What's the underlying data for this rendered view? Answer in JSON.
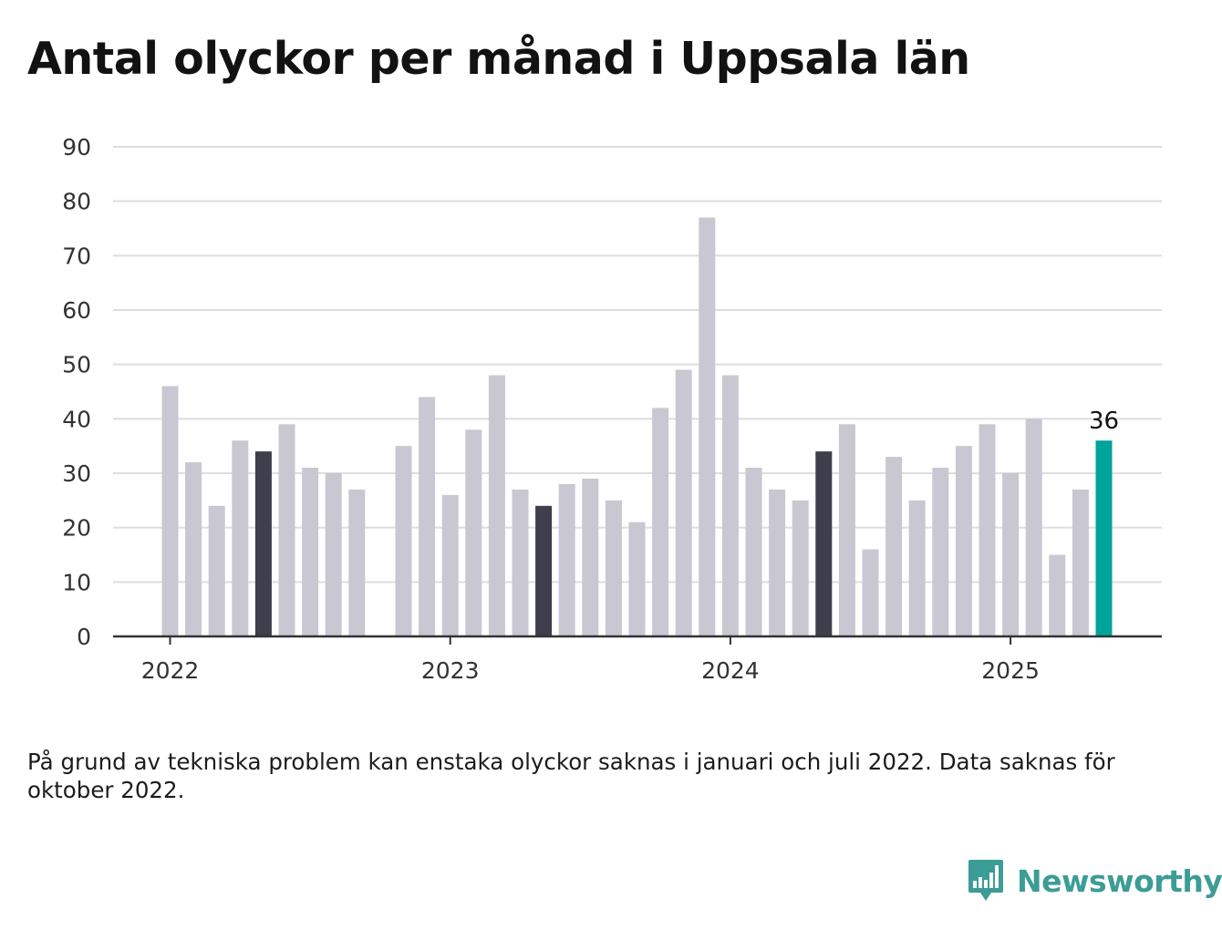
{
  "title": "Antal olyckor per månad i Uppsala län",
  "footnote": "På grund av tekniska problem kan enstaka olyckor saknas i januari och juli 2022. Data saknas för oktober 2022.",
  "brand": {
    "name": "Newsworthy",
    "icon": "newsworthy-chart-bubble-icon",
    "color": "#3c9c96"
  },
  "colors": {
    "bar": "#c8c7d2",
    "bar_may": "#3f3e4c",
    "bar_latest": "#00a49a",
    "grid": "#dedede",
    "axis": "#333333"
  },
  "chart_data": {
    "type": "bar",
    "title": "Antal olyckor per månad i Uppsala län",
    "xlabel": "",
    "ylabel": "",
    "ylim": [
      0,
      90
    ],
    "yticks": [
      0,
      10,
      20,
      30,
      40,
      50,
      60,
      70,
      80,
      90
    ],
    "xticks": [
      "2022",
      "2023",
      "2024",
      "2025"
    ],
    "grid": true,
    "legend": "none",
    "months": [
      "2022-01",
      "2022-02",
      "2022-03",
      "2022-04",
      "2022-05",
      "2022-06",
      "2022-07",
      "2022-08",
      "2022-09",
      "2022-10",
      "2022-11",
      "2022-12",
      "2023-01",
      "2023-02",
      "2023-03",
      "2023-04",
      "2023-05",
      "2023-06",
      "2023-07",
      "2023-08",
      "2023-09",
      "2023-10",
      "2023-11",
      "2023-12",
      "2024-01",
      "2024-02",
      "2024-03",
      "2024-04",
      "2024-05",
      "2024-06",
      "2024-07",
      "2024-08",
      "2024-09",
      "2024-10",
      "2024-11",
      "2024-12",
      "2025-01",
      "2025-02",
      "2025-03",
      "2025-04",
      "2025-05"
    ],
    "values": [
      46,
      32,
      24,
      36,
      34,
      39,
      31,
      30,
      27,
      null,
      35,
      44,
      26,
      38,
      48,
      27,
      24,
      28,
      29,
      25,
      21,
      42,
      49,
      77,
      48,
      31,
      27,
      25,
      34,
      39,
      16,
      33,
      25,
      31,
      35,
      39,
      30,
      40,
      15,
      27,
      36
    ],
    "highlighted_month": "May",
    "latest_label": "36"
  }
}
